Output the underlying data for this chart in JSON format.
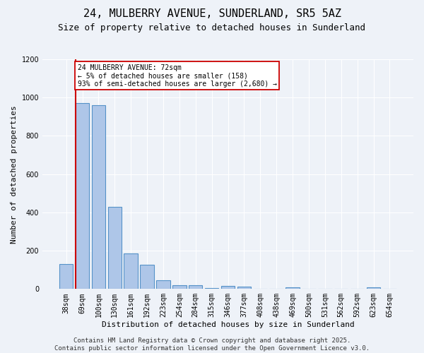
{
  "title_line1": "24, MULBERRY AVENUE, SUNDERLAND, SR5 5AZ",
  "title_line2": "Size of property relative to detached houses in Sunderland",
  "xlabel": "Distribution of detached houses by size in Sunderland",
  "ylabel": "Number of detached properties",
  "categories": [
    "38sqm",
    "69sqm",
    "100sqm",
    "130sqm",
    "161sqm",
    "192sqm",
    "223sqm",
    "254sqm",
    "284sqm",
    "315sqm",
    "346sqm",
    "377sqm",
    "408sqm",
    "438sqm",
    "469sqm",
    "500sqm",
    "531sqm",
    "562sqm",
    "592sqm",
    "623sqm",
    "654sqm"
  ],
  "values": [
    130,
    970,
    960,
    430,
    185,
    125,
    45,
    18,
    18,
    5,
    15,
    12,
    0,
    0,
    8,
    0,
    0,
    0,
    0,
    8,
    0
  ],
  "bar_color": "#aec6e8",
  "bar_edge_color": "#5592c8",
  "vline_x_index": 1,
  "vline_color": "#cc0000",
  "annotation_text": "24 MULBERRY AVENUE: 72sqm\n← 5% of detached houses are smaller (158)\n93% of semi-detached houses are larger (2,680) →",
  "annotation_box_color": "#cc0000",
  "annotation_fill": "white",
  "ylim": [
    0,
    1200
  ],
  "yticks": [
    0,
    200,
    400,
    600,
    800,
    1000,
    1200
  ],
  "background_color": "#eef2f8",
  "grid_color": "white",
  "footnote": "Contains HM Land Registry data © Crown copyright and database right 2025.\nContains public sector information licensed under the Open Government Licence v3.0.",
  "title_fontsize": 11,
  "subtitle_fontsize": 9,
  "axis_label_fontsize": 8,
  "tick_fontsize": 7,
  "annotation_fontsize": 7,
  "footnote_fontsize": 6.5
}
